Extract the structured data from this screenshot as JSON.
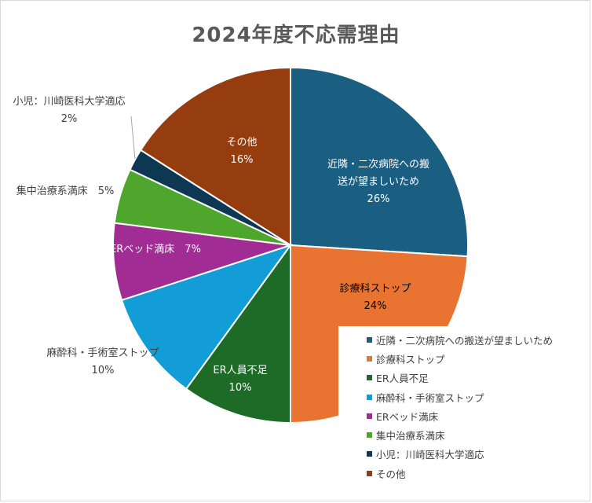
{
  "chart_data": {
    "type": "pie",
    "title": "2024年度不応需理由",
    "legend_position": "bottom-right",
    "slices": [
      {
        "name": "近隣・二次病院への搬送が望ましいため",
        "label": "近隣・二次病院への搬送が望ましいため",
        "percent_label": "26%",
        "value": 26,
        "color": "#1a5e82"
      },
      {
        "name": "診療科ストップ",
        "label": "診療科ストップ",
        "percent_label": "24%",
        "value": 24,
        "color": "#e97432"
      },
      {
        "name": "ER人員不足",
        "label": "ER人員不足",
        "percent_label": "10%",
        "value": 10,
        "color": "#1e6a27"
      },
      {
        "name": "麻酔科・手術室ストップ",
        "label": "麻酔科・手術室ストップ",
        "percent_label": "10%",
        "value": 10,
        "color": "#139dd6"
      },
      {
        "name": "ERベッド満床",
        "label": "ERベッド満床",
        "percent_label": "7%",
        "value": 7,
        "color": "#a02c94"
      },
      {
        "name": "集中治療系満床",
        "label": "集中治療系満床",
        "percent_label": "5%",
        "value": 5,
        "color": "#4ea72c"
      },
      {
        "name": "小児：川崎医科大学適応",
        "label": "小児：川崎医科大学適応",
        "percent_label": "2%",
        "value": 2,
        "color": "#0e3752"
      },
      {
        "name": "その他",
        "label": "その他",
        "percent_label": "16%",
        "value": 16,
        "color": "#953d0e"
      }
    ]
  }
}
